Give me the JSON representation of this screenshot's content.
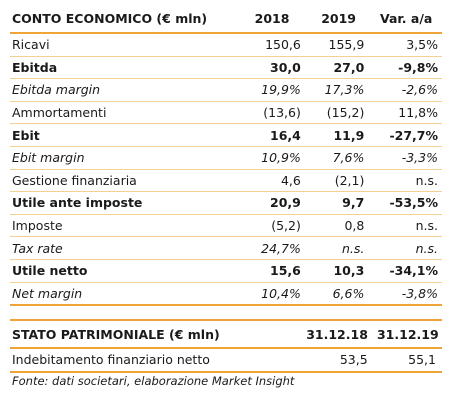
{
  "income": {
    "header": {
      "label": "CONTO ECONOMICO (€ mln)",
      "col1": "2018",
      "col2": "2019",
      "col3": "Var. a/a"
    },
    "rows": [
      {
        "label": "Ricavi",
        "v1": "150,6",
        "v2": "155,9",
        "v3": "3,5%"
      },
      {
        "label": "Ebitda",
        "v1": "30,0",
        "v2": "27,0",
        "v3": "-9,8%"
      },
      {
        "label": "Ebitda margin",
        "v1": "19,9%",
        "v2": "17,3%",
        "v3": "-2,6%"
      },
      {
        "label": "Ammortamenti",
        "v1": "(13,6)",
        "v2": "(15,2)",
        "v3": "11,8%"
      },
      {
        "label": "Ebit",
        "v1": "16,4",
        "v2": "11,9",
        "v3": "-27,7%"
      },
      {
        "label": "Ebit margin",
        "v1": "10,9%",
        "v2": "7,6%",
        "v3": "-3,3%"
      },
      {
        "label": "Gestione finanziaria",
        "v1": "4,6",
        "v2": "(2,1)",
        "v3": "n.s."
      },
      {
        "label": "Utile ante imposte",
        "v1": "20,9",
        "v2": "9,7",
        "v3": "-53,5%"
      },
      {
        "label": "Imposte",
        "v1": "(5,2)",
        "v2": "0,8",
        "v3": "n.s."
      },
      {
        "label": "Tax rate",
        "v1": "24,7%",
        "v2": "n.s.",
        "v3": "n.s."
      },
      {
        "label": "Utile netto",
        "v1": "15,6",
        "v2": "10,3",
        "v3": "-34,1%"
      },
      {
        "label": "Net margin",
        "v1": "10,4%",
        "v2": "6,6%",
        "v3": "-3,8%"
      }
    ]
  },
  "balance": {
    "header": {
      "label": "STATO PATRIMONIALE (€ mln)",
      "col1": "31.12.18",
      "col2": "31.12.19"
    },
    "rows": [
      {
        "label": "Indebitamento finanziario netto",
        "v1": "53,5",
        "v2": "55,1"
      }
    ]
  },
  "source": "Fonte: dati societari, elaborazione Market Insight",
  "colors": {
    "accent_line": "#f0a437",
    "row_line": "#f6cf94"
  }
}
